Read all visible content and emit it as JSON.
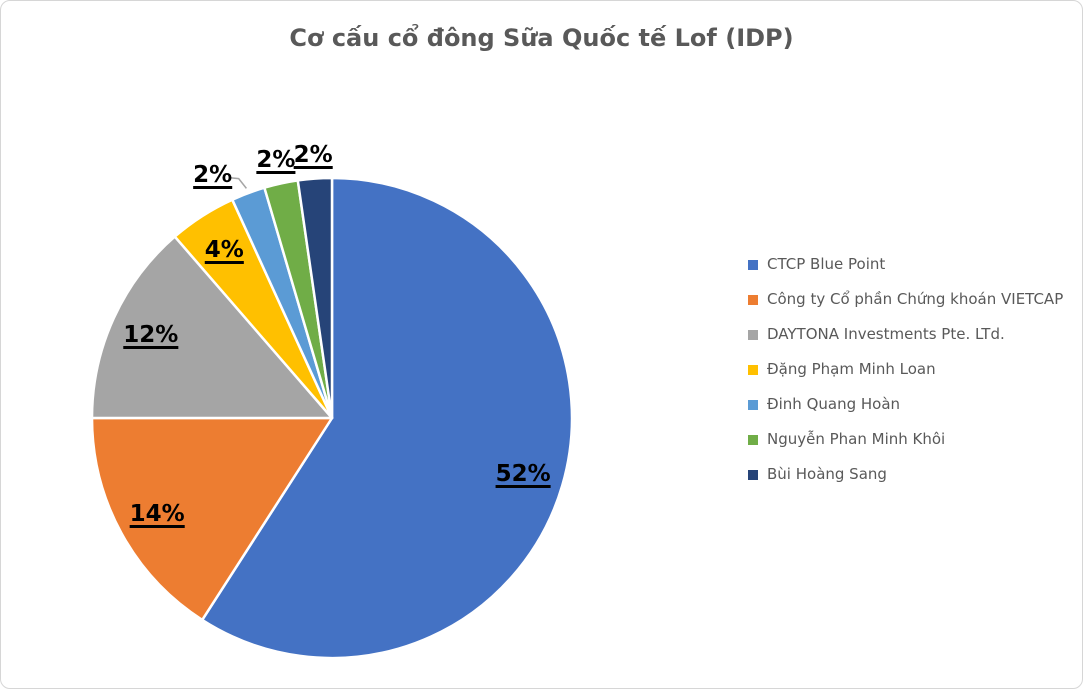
{
  "chart_data": {
    "type": "pie",
    "title": "Cơ cấu cổ đông Sữa Quốc tế Lof (IDP)",
    "legend_position": "right",
    "start_angle_deg": 0,
    "direction": "clockwise",
    "slices": [
      {
        "name": "CTCP Blue Point",
        "value": 52,
        "label": "52%",
        "color": "#4472C4",
        "label_placement": "inside"
      },
      {
        "name": "Công ty Cổ phần Chứng khoán VIETCAP",
        "value": 14,
        "label": "14%",
        "color": "#ED7D31",
        "label_placement": "inside"
      },
      {
        "name": "DAYTONA Investments Pte. LTd.",
        "value": 12,
        "label": "12%",
        "color": "#A5A5A5",
        "label_placement": "inside"
      },
      {
        "name": "Đặng Phạm Minh Loan",
        "value": 4,
        "label": "4%",
        "color": "#FFC000",
        "label_placement": "inside"
      },
      {
        "name": "Đinh Quang Hoàn",
        "value": 2,
        "label": "2%",
        "color": "#5B9BD5",
        "label_placement": "outside-callout"
      },
      {
        "name": "Nguyễn Phan Minh Khôi",
        "value": 2,
        "label": "2%",
        "color": "#70AD47",
        "label_placement": "outside"
      },
      {
        "name": "Bùi Hoàng Sang",
        "value": 2,
        "label": "2%",
        "color": "#264478",
        "label_placement": "outside"
      }
    ]
  },
  "styles": {
    "title_color": "#595959",
    "legend_text_color": "#595959",
    "data_label_color": "#000000",
    "slice_border_color": "#FFFFFF",
    "leader_line_color": "#A6A6A6",
    "frame_border_color": "#D6D6D6",
    "background_color": "#FFFFFF"
  }
}
